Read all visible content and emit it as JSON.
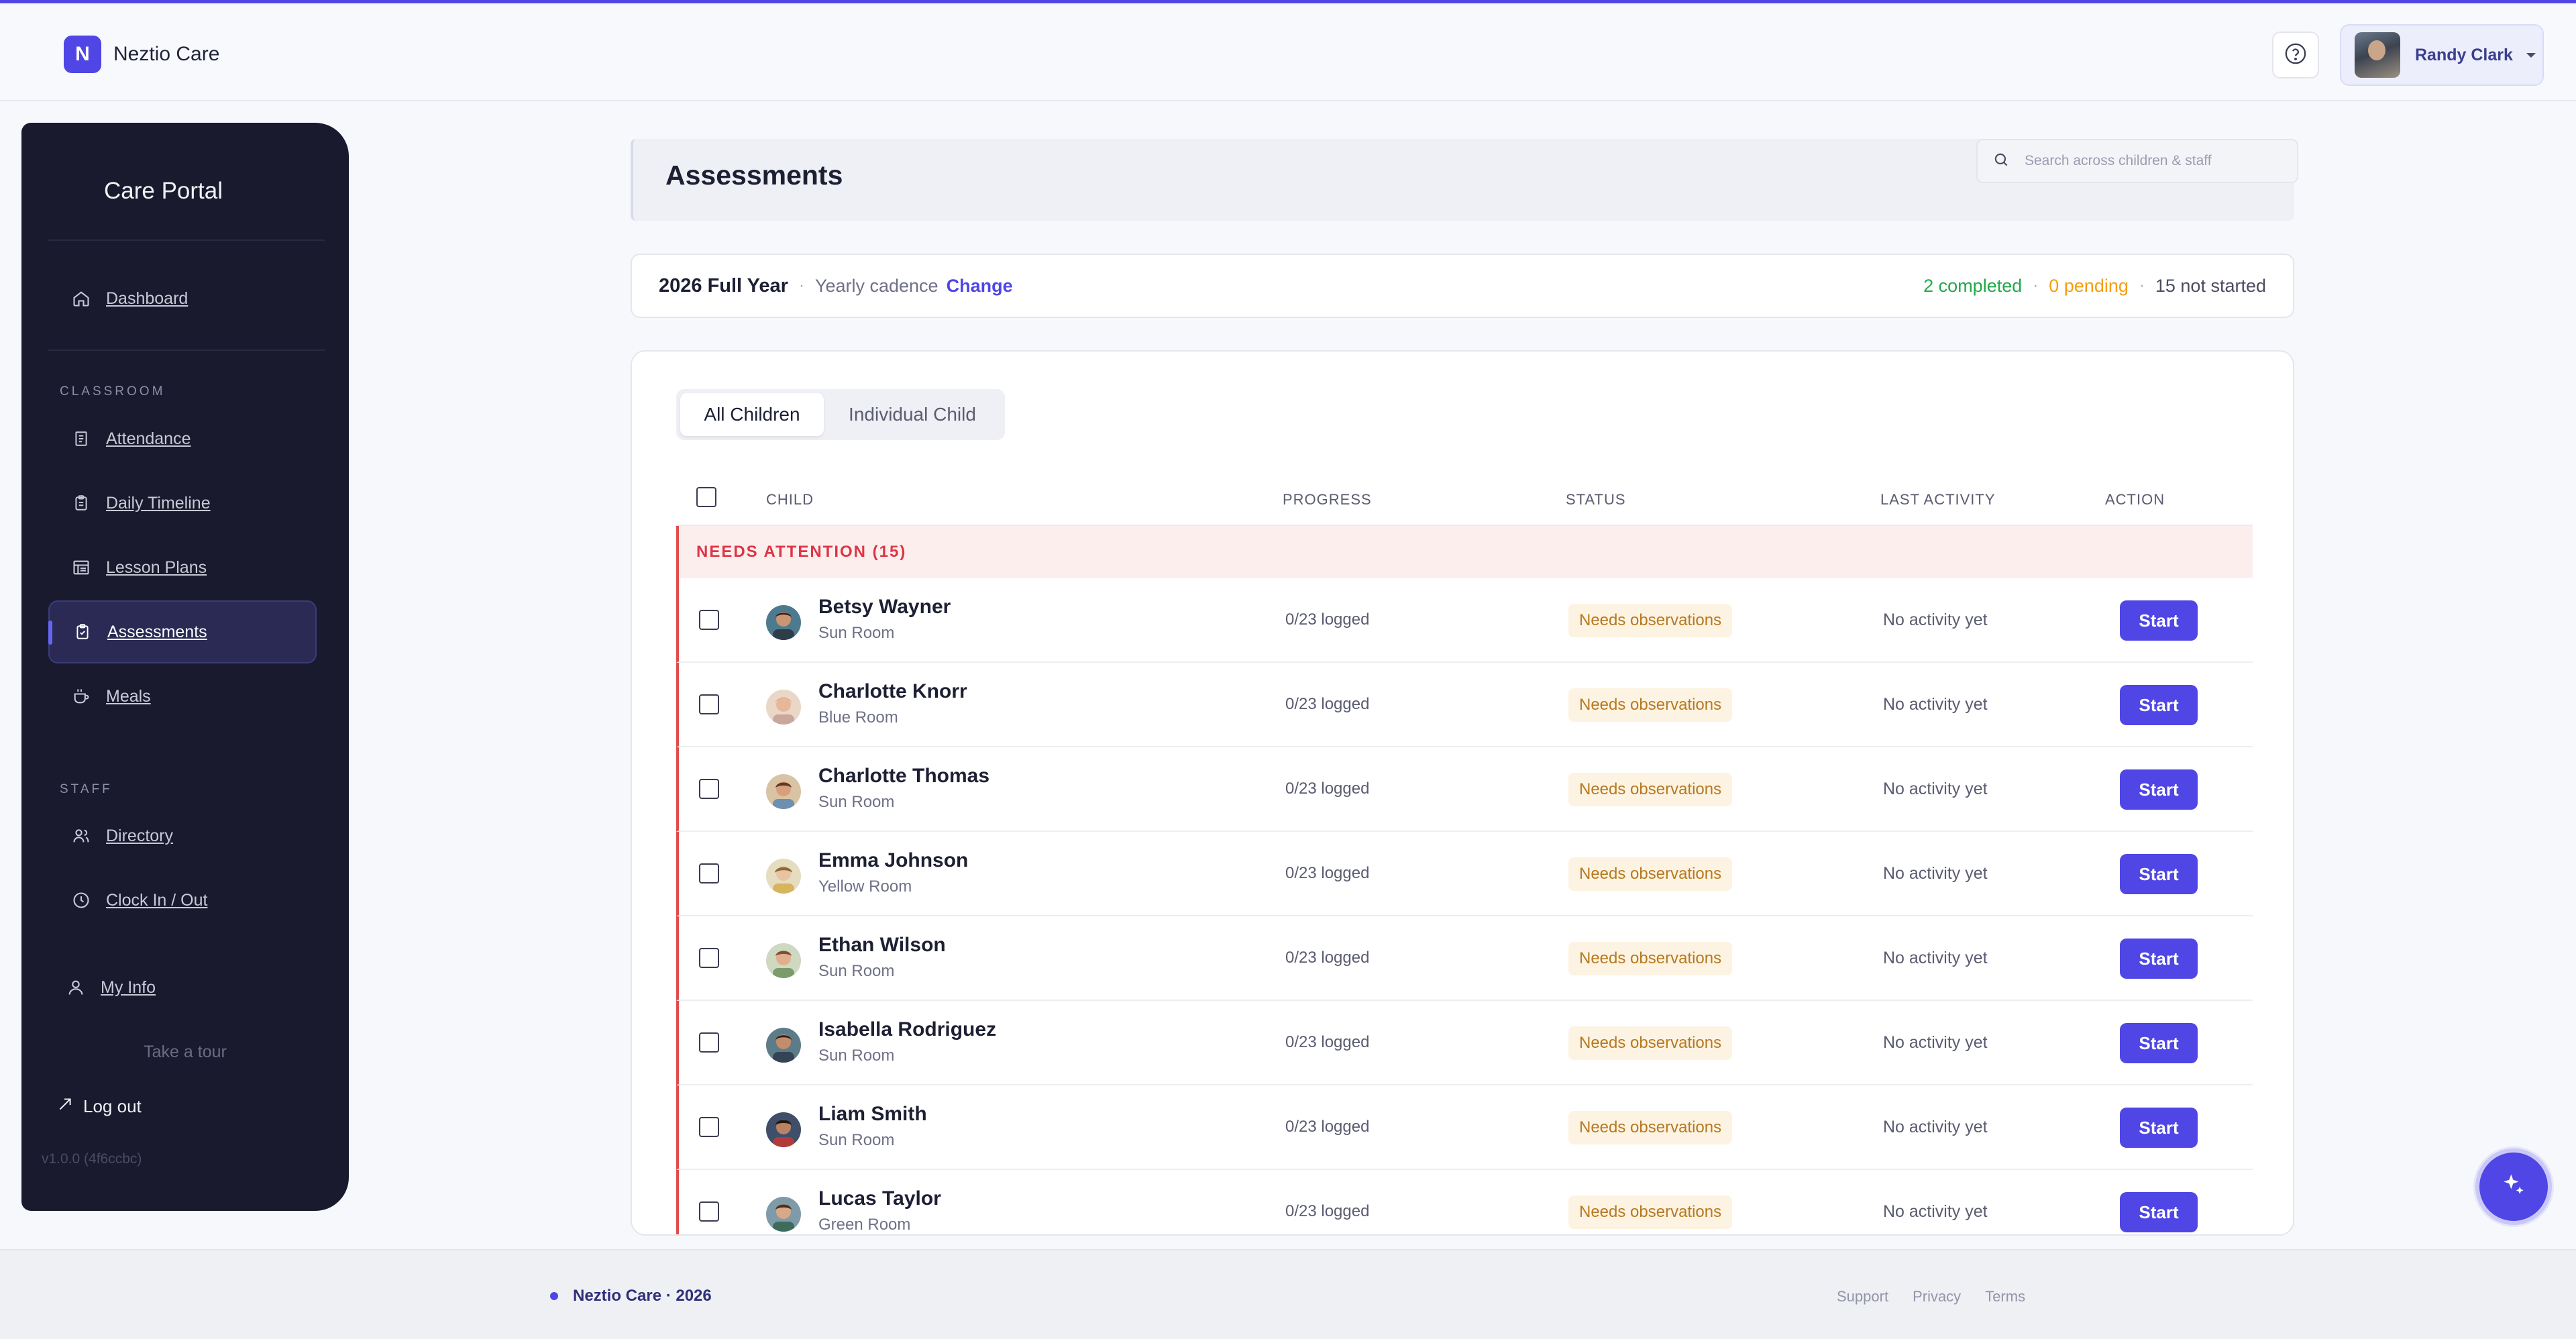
{
  "app": {
    "logo_letter": "N",
    "name": "Neztio Care",
    "accent": "#4f46e5"
  },
  "header": {
    "user_name": "Randy Clark"
  },
  "sidebar": {
    "title": "Care Portal",
    "dashboard": {
      "label": "Dashboard",
      "icon": "home-icon"
    },
    "section_classroom": "CLASSROOM",
    "classroom_items": [
      {
        "label": "Attendance",
        "icon": "notebook-icon"
      },
      {
        "label": "Daily Timeline",
        "icon": "clipboard-icon"
      },
      {
        "label": "Lesson Plans",
        "icon": "lesson-plan-icon"
      },
      {
        "label": "Assessments",
        "icon": "clipboard-check-icon",
        "active": true
      },
      {
        "label": "Meals",
        "icon": "cup-icon"
      }
    ],
    "section_staff": "STAFF",
    "staff_items": [
      {
        "label": "Directory",
        "icon": "users-icon"
      },
      {
        "label": "Clock In / Out",
        "icon": "clock-icon"
      }
    ],
    "my_info": {
      "label": "My Info",
      "icon": "user-icon"
    },
    "tour": "Take a tour",
    "logout": "Log out",
    "version": "v1.0.0 (4f6ccbc)"
  },
  "main": {
    "title": "Assessments",
    "search_placeholder": "Search across children & staff",
    "period": {
      "name": "2026 Full Year",
      "separator": "·",
      "cadence": "Yearly cadence",
      "change_label": "Change",
      "completed": "2 completed",
      "pending": "0 pending",
      "not_started": "15 not started"
    },
    "tabs": [
      "All Children",
      "Individual Child"
    ],
    "columns": {
      "child": "CHILD",
      "progress": "PROGRESS",
      "status": "STATUS",
      "last_activity": "LAST ACTIVITY",
      "action": "ACTION"
    },
    "group_label": "NEEDS ATTENTION (15)",
    "rows": [
      {
        "name": "Betsy Wayner",
        "room": "Sun Room",
        "progress": "0/23 logged",
        "status": "Needs observations",
        "activity": "No activity yet",
        "action": "Start"
      },
      {
        "name": "Charlotte Knorr",
        "room": "Blue Room",
        "progress": "0/23 logged",
        "status": "Needs observations",
        "activity": "No activity yet",
        "action": "Start"
      },
      {
        "name": "Charlotte Thomas",
        "room": "Sun Room",
        "progress": "0/23 logged",
        "status": "Needs observations",
        "activity": "No activity yet",
        "action": "Start"
      },
      {
        "name": "Emma Johnson",
        "room": "Yellow Room",
        "progress": "0/23 logged",
        "status": "Needs observations",
        "activity": "No activity yet",
        "action": "Start"
      },
      {
        "name": "Ethan Wilson",
        "room": "Sun Room",
        "progress": "0/23 logged",
        "status": "Needs observations",
        "activity": "No activity yet",
        "action": "Start"
      },
      {
        "name": "Isabella Rodriguez",
        "room": "Sun Room",
        "progress": "0/23 logged",
        "status": "Needs observations",
        "activity": "No activity yet",
        "action": "Start"
      },
      {
        "name": "Liam Smith",
        "room": "Sun Room",
        "progress": "0/23 logged",
        "status": "Needs observations",
        "activity": "No activity yet",
        "action": "Start"
      },
      {
        "name": "Lucas Taylor",
        "room": "Green Room",
        "progress": "0/23 logged",
        "status": "Needs observations",
        "activity": "No activity yet",
        "action": "Start"
      }
    ]
  },
  "footer": {
    "brand": "Neztio Care · 2026",
    "links": [
      "Support",
      "Privacy",
      "Terms"
    ]
  }
}
